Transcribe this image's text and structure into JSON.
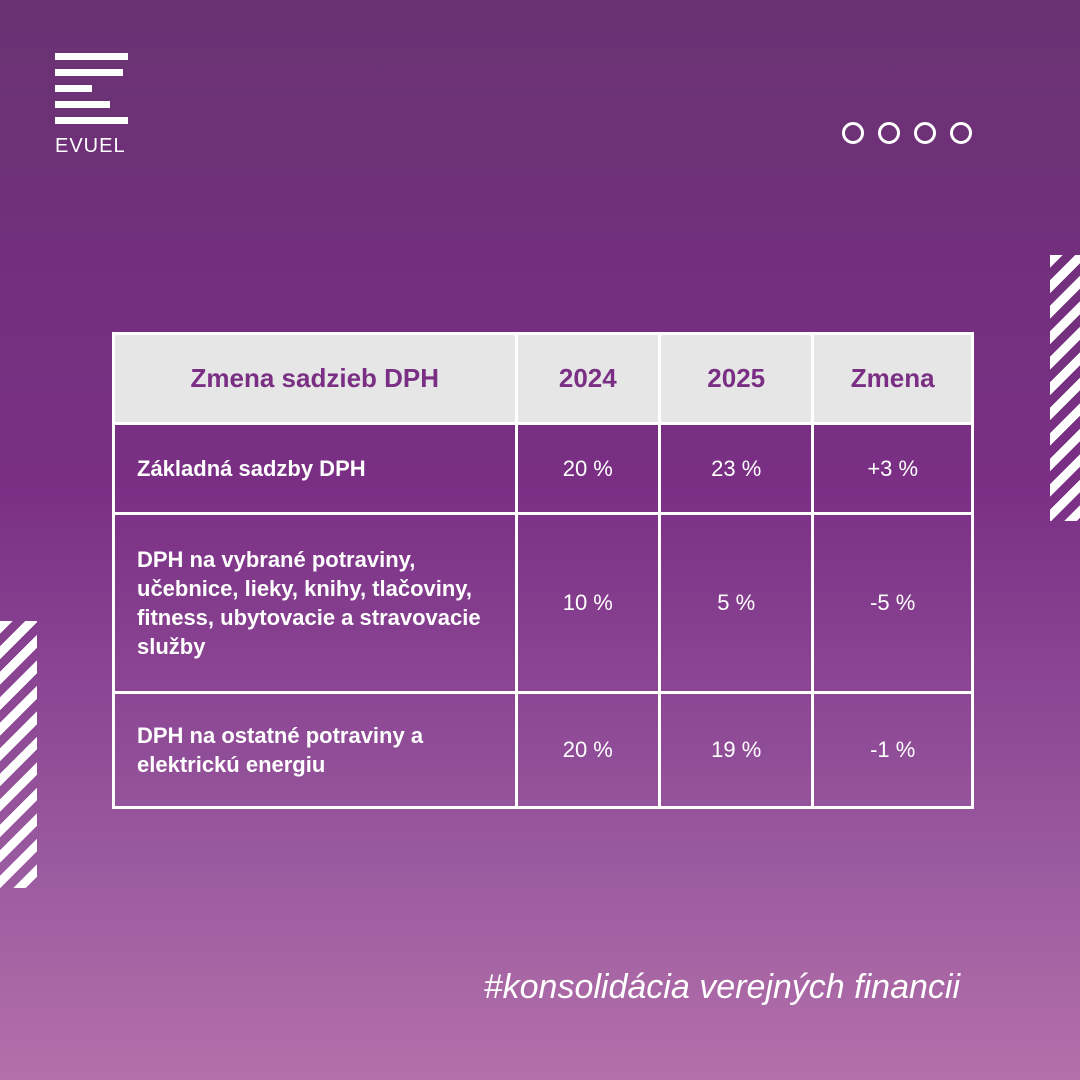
{
  "logo": {
    "text": "EVUEL"
  },
  "table": {
    "header": [
      "Zmena sadzieb DPH",
      "2024",
      "2025",
      "Zmena"
    ],
    "rows": [
      [
        "Základná sadzby DPH",
        "20 %",
        "23 %",
        "+3 %"
      ],
      [
        "DPH na vybrané potraviny, učebnice, lieky, knihy, tlačoviny, fitness, ubytovacie a stravovacie služby",
        "10 %",
        "5 %",
        "-5 %"
      ],
      [
        "DPH na ostatné potraviny a elektrickú energiu",
        "20 %",
        "19 %",
        "-1 %"
      ]
    ]
  },
  "footer": {
    "hashtag": "#konsolidácia verejných financii"
  }
}
